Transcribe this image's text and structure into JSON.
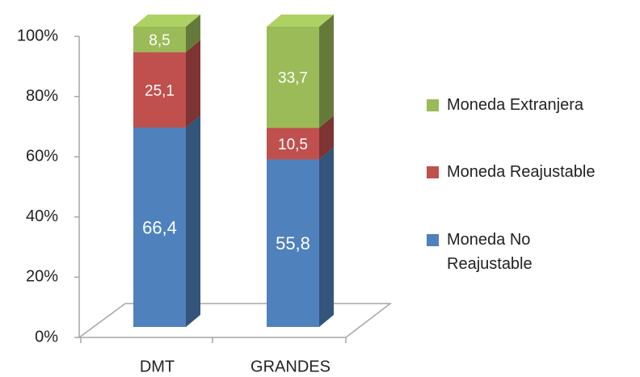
{
  "chart_data": {
    "type": "stacked-bar-3d",
    "categories": [
      "DMT",
      "GRANDES"
    ],
    "series": [
      {
        "name": "Moneda No Reajustable",
        "color": "#4f81bd",
        "values": [
          66.4,
          55.8
        ],
        "value_labels": [
          "66,4",
          "55,8"
        ]
      },
      {
        "name": "Moneda Reajustable",
        "color": "#c0504d",
        "values": [
          25.1,
          10.5
        ],
        "value_labels": [
          "25,1",
          "10,5"
        ]
      },
      {
        "name": "Moneda Extranjera",
        "color": "#9bbb59",
        "values": [
          8.5,
          33.7
        ],
        "value_labels": [
          "8,5",
          "33,7"
        ]
      }
    ],
    "ylim": [
      0,
      100
    ],
    "yticks": [
      {
        "value": 0,
        "label": "0%"
      },
      {
        "value": 20,
        "label": "20%"
      },
      {
        "value": 40,
        "label": "40%"
      },
      {
        "value": 60,
        "label": "60%"
      },
      {
        "value": 80,
        "label": "80%"
      },
      {
        "value": 100,
        "label": "100%"
      }
    ],
    "legend": "right"
  }
}
